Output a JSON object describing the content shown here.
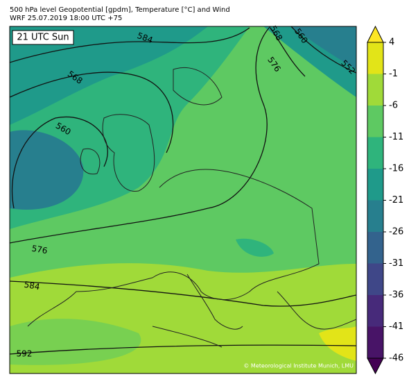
{
  "header": {
    "title": "500 hPa level Geopotential [gpdm], Temperature [°C] and Wind",
    "subtitle": "WRF 25.07.2019 18:00 UTC +75"
  },
  "map": {
    "time_label": "21 UTC Sun",
    "contour_labels": [
      584,
      568,
      560,
      568,
      560,
      576,
      552,
      576,
      584,
      592
    ],
    "credit": "© Meteorological Institute Munich, LMU"
  },
  "colorbar": {
    "lim": [
      -46,
      4
    ],
    "ticks": [
      4,
      -1,
      -6,
      -11,
      -16,
      -21,
      -26,
      -31,
      -36,
      -41,
      -46
    ],
    "colors": [
      "#e2e418",
      "#a0da39",
      "#5ec962",
      "#2fb47c",
      "#1f9a8a",
      "#277f8e",
      "#33638d",
      "#3f4788",
      "#472a7a",
      "#481467"
    ],
    "under_color": "#440154",
    "over_color": "#fde725"
  }
}
